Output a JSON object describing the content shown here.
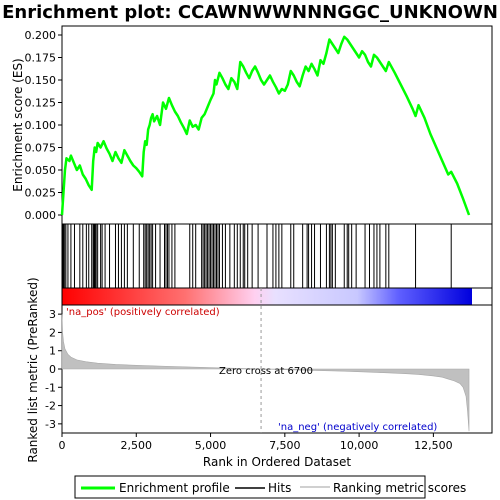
{
  "chart_data": {
    "type": "line",
    "title": "Enrichment plot: CCAWNWWNNNGGC_UNKNOWN",
    "es_panel": {
      "ylabel": "Enrichment score (ES)",
      "ylim": [
        -0.01,
        0.21
      ],
      "yticks": [
        0.0,
        0.025,
        0.05,
        0.075,
        0.1,
        0.125,
        0.15,
        0.175,
        0.2
      ],
      "ytick_labels": [
        "0.000",
        "0.025",
        "0.050",
        "0.075",
        "0.100",
        "0.125",
        "0.150",
        "0.175",
        "0.200"
      ],
      "series": [
        {
          "name": "Enrichment profile",
          "color": "#00ff00",
          "x": [
            0,
            60,
            100,
            150,
            250,
            300,
            400,
            500,
            600,
            700,
            800,
            900,
            1000,
            1050,
            1100,
            1150,
            1200,
            1300,
            1400,
            1500,
            1600,
            1700,
            1800,
            1900,
            2000,
            2100,
            2200,
            2300,
            2400,
            2500,
            2600,
            2700,
            2750,
            2800,
            2850,
            2900,
            2950,
            3000,
            3050,
            3100,
            3200,
            3300,
            3400,
            3500,
            3600,
            3700,
            3800,
            3900,
            4000,
            4100,
            4200,
            4300,
            4400,
            4500,
            4600,
            4700,
            4800,
            4900,
            5000,
            5100,
            5150,
            5200,
            5300,
            5400,
            5500,
            5600,
            5700,
            5800,
            5900,
            6000,
            6100,
            6200,
            6300,
            6400,
            6500,
            6600,
            6700,
            6800,
            6900,
            7000,
            7100,
            7200,
            7300,
            7400,
            7500,
            7600,
            7700,
            7800,
            7900,
            8000,
            8100,
            8200,
            8300,
            8400,
            8500,
            8600,
            8700,
            8800,
            8900,
            9000,
            9100,
            9200,
            9300,
            9400,
            9500,
            9600,
            9700,
            9800,
            9900,
            10000,
            10100,
            10200,
            10300,
            10400,
            10500,
            10600,
            10700,
            10800,
            10900,
            11000,
            11200,
            11400,
            11600,
            11800,
            11900,
            12000,
            12200,
            12400,
            12600,
            12800,
            13000,
            13100,
            13300,
            13500,
            13700
          ],
          "y": [
            0.0,
            0.03,
            0.05,
            0.063,
            0.06,
            0.066,
            0.058,
            0.05,
            0.055,
            0.045,
            0.04,
            0.033,
            0.028,
            0.06,
            0.075,
            0.07,
            0.08,
            0.075,
            0.082,
            0.074,
            0.068,
            0.06,
            0.07,
            0.063,
            0.058,
            0.072,
            0.066,
            0.06,
            0.055,
            0.052,
            0.048,
            0.043,
            0.07,
            0.082,
            0.078,
            0.095,
            0.1,
            0.108,
            0.112,
            0.104,
            0.11,
            0.1,
            0.125,
            0.118,
            0.13,
            0.122,
            0.115,
            0.11,
            0.103,
            0.097,
            0.09,
            0.105,
            0.098,
            0.1,
            0.095,
            0.108,
            0.112,
            0.12,
            0.128,
            0.135,
            0.15,
            0.145,
            0.158,
            0.152,
            0.145,
            0.14,
            0.152,
            0.148,
            0.14,
            0.17,
            0.165,
            0.158,
            0.152,
            0.16,
            0.165,
            0.158,
            0.15,
            0.145,
            0.15,
            0.155,
            0.148,
            0.142,
            0.135,
            0.14,
            0.138,
            0.145,
            0.16,
            0.155,
            0.148,
            0.143,
            0.155,
            0.165,
            0.16,
            0.168,
            0.162,
            0.155,
            0.172,
            0.168,
            0.18,
            0.195,
            0.19,
            0.185,
            0.18,
            0.19,
            0.198,
            0.195,
            0.19,
            0.185,
            0.18,
            0.175,
            0.182,
            0.178,
            0.17,
            0.165,
            0.178,
            0.175,
            0.17,
            0.165,
            0.16,
            0.17,
            0.158,
            0.145,
            0.132,
            0.118,
            0.11,
            0.122,
            0.108,
            0.09,
            0.075,
            0.06,
            0.045,
            0.048,
            0.035,
            0.018,
            0.0
          ]
        }
      ]
    },
    "hits": {
      "name": "Hits",
      "positions": [
        20,
        50,
        90,
        130,
        200,
        300,
        420,
        600,
        700,
        820,
        900,
        1000,
        1050,
        1080,
        1100,
        1120,
        1150,
        1200,
        1300,
        1350,
        1450,
        1600,
        1800,
        1900,
        2000,
        2100,
        2200,
        2400,
        2600,
        2750,
        2800,
        2850,
        2900,
        2950,
        3000,
        3050,
        3150,
        3300,
        3450,
        3500,
        3550,
        3600,
        3700,
        3800,
        4300,
        4400,
        4500,
        4700,
        4750,
        4800,
        4850,
        4900,
        4950,
        5000,
        5050,
        5100,
        5150,
        5200,
        5250,
        5300,
        5400,
        5500,
        5650,
        5800,
        5900,
        6000,
        6100,
        6150,
        6250,
        6400,
        6600,
        6900,
        7100,
        7200,
        7300,
        7400,
        7700,
        7800,
        8100,
        8250,
        8300,
        8400,
        8500,
        8700,
        8900,
        9000,
        9050,
        9100,
        9200,
        9500,
        9600,
        9650,
        9750,
        9900,
        10200,
        10350,
        10500,
        10600,
        10700,
        10900,
        11000,
        11900,
        13100
      ]
    },
    "ranked_metric": {
      "name": "Ranking metric scores",
      "ylabel": "Ranked list metric (PreRanked)",
      "ylim": [
        -3.5,
        3.5
      ],
      "yticks": [
        -3,
        -2,
        -1,
        0,
        1,
        2,
        3
      ],
      "ytick_labels": [
        "-3",
        "-2",
        "-1",
        "0",
        "1",
        "2",
        "3"
      ],
      "x": [
        0,
        20,
        50,
        100,
        200,
        300,
        500,
        800,
        1200,
        1800,
        2500,
        3500,
        4500,
        5500,
        6700,
        7500,
        8500,
        9500,
        10500,
        11500,
        12000,
        12500,
        12800,
        13000,
        13200,
        13400,
        13500,
        13600,
        13650,
        13700
      ],
      "y": [
        3.0,
        2.0,
        1.5,
        1.1,
        0.8,
        0.65,
        0.5,
        0.4,
        0.32,
        0.25,
        0.2,
        0.15,
        0.1,
        0.05,
        0.0,
        -0.04,
        -0.08,
        -0.12,
        -0.18,
        -0.25,
        -0.3,
        -0.38,
        -0.45,
        -0.55,
        -0.65,
        -0.8,
        -1.0,
        -1.5,
        -2.3,
        -3.4
      ]
    },
    "xlabel": "Rank in Ordered Dataset",
    "xlim": [
      0,
      13800
    ],
    "xticks": [
      0,
      2500,
      5000,
      7500,
      10000,
      12500
    ],
    "xtick_labels": [
      "0",
      "2,500",
      "5,000",
      "7,500",
      "10,000",
      "12,500"
    ],
    "zero_cross": 6700,
    "annotations": {
      "pos": "'na_pos' (positively correlated)",
      "neg": "'na_neg' (negatively correlated)",
      "zero": "Zero cross at 6700"
    },
    "legend": {
      "placement": "bottom",
      "items": [
        "Enrichment profile",
        "Hits",
        "Ranking metric scores"
      ]
    },
    "colors": {
      "profile": "#00ff00",
      "hits": "#000000",
      "metric": "#c0c0c0",
      "pos_band": "#ff0000",
      "neg_band": "#0000ff"
    }
  }
}
